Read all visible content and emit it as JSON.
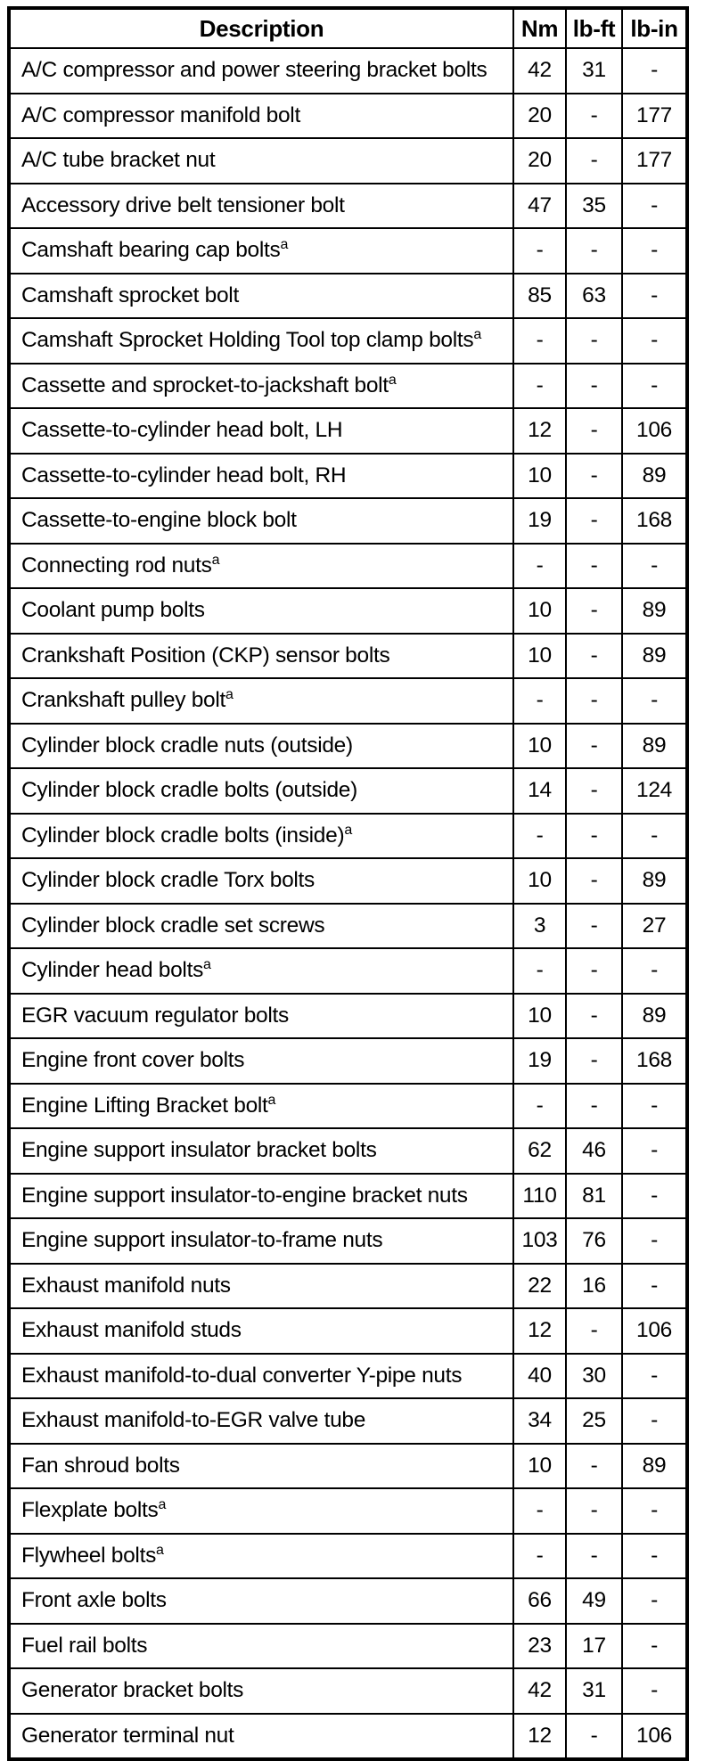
{
  "page": {
    "background_color": "#ffffff",
    "border_color": "#000000",
    "text_color": "#000000"
  },
  "table": {
    "columns": [
      "Description",
      "Nm",
      "lb-ft",
      "lb-in"
    ],
    "footnote_marker": "a",
    "rows": [
      {
        "desc": "A/C compressor and power steering bracket bolts",
        "sup": false,
        "nm": "42",
        "lbft": "31",
        "lbin": "-"
      },
      {
        "desc": "A/C compressor manifold bolt",
        "sup": false,
        "nm": "20",
        "lbft": "-",
        "lbin": "177"
      },
      {
        "desc": "A/C tube bracket nut",
        "sup": false,
        "nm": "20",
        "lbft": "-",
        "lbin": "177"
      },
      {
        "desc": "Accessory drive belt tensioner bolt",
        "sup": false,
        "nm": "47",
        "lbft": "35",
        "lbin": "-"
      },
      {
        "desc": "Camshaft bearing cap bolts",
        "sup": true,
        "nm": "-",
        "lbft": "-",
        "lbin": "-"
      },
      {
        "desc": "Camshaft sprocket bolt",
        "sup": false,
        "nm": "85",
        "lbft": "63",
        "lbin": "-"
      },
      {
        "desc": "Camshaft Sprocket Holding Tool top clamp bolts",
        "sup": true,
        "nm": "-",
        "lbft": "-",
        "lbin": "-"
      },
      {
        "desc": "Cassette and sprocket-to-jackshaft bolt",
        "sup": true,
        "nm": "-",
        "lbft": "-",
        "lbin": "-"
      },
      {
        "desc": "Cassette-to-cylinder head bolt, LH",
        "sup": false,
        "nm": "12",
        "lbft": "-",
        "lbin": "106"
      },
      {
        "desc": "Cassette-to-cylinder head bolt, RH",
        "sup": false,
        "nm": "10",
        "lbft": "-",
        "lbin": "89"
      },
      {
        "desc": "Cassette-to-engine block bolt",
        "sup": false,
        "nm": "19",
        "lbft": "-",
        "lbin": "168"
      },
      {
        "desc": "Connecting rod nuts",
        "sup": true,
        "nm": "-",
        "lbft": "-",
        "lbin": "-"
      },
      {
        "desc": "Coolant pump bolts",
        "sup": false,
        "nm": "10",
        "lbft": "-",
        "lbin": "89"
      },
      {
        "desc": "Crankshaft Position (CKP) sensor bolts",
        "sup": false,
        "nm": "10",
        "lbft": "-",
        "lbin": "89"
      },
      {
        "desc": "Crankshaft pulley bolt",
        "sup": true,
        "nm": "-",
        "lbft": "-",
        "lbin": "-"
      },
      {
        "desc": "Cylinder block cradle nuts (outside)",
        "sup": false,
        "nm": "10",
        "lbft": "-",
        "lbin": "89"
      },
      {
        "desc": "Cylinder block cradle bolts (outside)",
        "sup": false,
        "nm": "14",
        "lbft": "-",
        "lbin": "124"
      },
      {
        "desc": "Cylinder block cradle bolts (inside)",
        "sup": true,
        "nm": "-",
        "lbft": "-",
        "lbin": "-"
      },
      {
        "desc": "Cylinder block cradle Torx bolts",
        "sup": false,
        "nm": "10",
        "lbft": "-",
        "lbin": "89"
      },
      {
        "desc": "Cylinder block cradle set screws",
        "sup": false,
        "nm": "3",
        "lbft": "-",
        "lbin": "27"
      },
      {
        "desc": "Cylinder head bolts",
        "sup": true,
        "nm": "-",
        "lbft": "-",
        "lbin": "-"
      },
      {
        "desc": "EGR vacuum regulator bolts",
        "sup": false,
        "nm": "10",
        "lbft": "-",
        "lbin": "89"
      },
      {
        "desc": "Engine front cover bolts",
        "sup": false,
        "nm": "19",
        "lbft": "-",
        "lbin": "168"
      },
      {
        "desc": "Engine Lifting Bracket bolt",
        "sup": true,
        "nm": "-",
        "lbft": "-",
        "lbin": "-"
      },
      {
        "desc": "Engine support insulator bracket bolts",
        "sup": false,
        "nm": "62",
        "lbft": "46",
        "lbin": "-"
      },
      {
        "desc": "Engine support insulator-to-engine bracket nuts",
        "sup": false,
        "nm": "110",
        "lbft": "81",
        "lbin": "-"
      },
      {
        "desc": "Engine support insulator-to-frame nuts",
        "sup": false,
        "nm": "103",
        "lbft": "76",
        "lbin": "-"
      },
      {
        "desc": "Exhaust manifold nuts",
        "sup": false,
        "nm": "22",
        "lbft": "16",
        "lbin": "-"
      },
      {
        "desc": "Exhaust manifold studs",
        "sup": false,
        "nm": "12",
        "lbft": "-",
        "lbin": "106"
      },
      {
        "desc": "Exhaust manifold-to-dual converter Y-pipe nuts",
        "sup": false,
        "nm": "40",
        "lbft": "30",
        "lbin": "-"
      },
      {
        "desc": "Exhaust manifold-to-EGR valve tube",
        "sup": false,
        "nm": "34",
        "lbft": "25",
        "lbin": "-"
      },
      {
        "desc": "Fan shroud bolts",
        "sup": false,
        "nm": "10",
        "lbft": "-",
        "lbin": "89"
      },
      {
        "desc": "Flexplate bolts",
        "sup": true,
        "nm": "-",
        "lbft": "-",
        "lbin": "-"
      },
      {
        "desc": "Flywheel bolts",
        "sup": true,
        "nm": "-",
        "lbft": "-",
        "lbin": "-"
      },
      {
        "desc": "Front axle bolts",
        "sup": false,
        "nm": "66",
        "lbft": "49",
        "lbin": "-"
      },
      {
        "desc": "Fuel rail bolts",
        "sup": false,
        "nm": "23",
        "lbft": "17",
        "lbin": "-"
      },
      {
        "desc": "Generator bracket bolts",
        "sup": false,
        "nm": "42",
        "lbft": "31",
        "lbin": "-"
      },
      {
        "desc": "Generator terminal nut",
        "sup": false,
        "nm": "12",
        "lbft": "-",
        "lbin": "106"
      }
    ]
  }
}
